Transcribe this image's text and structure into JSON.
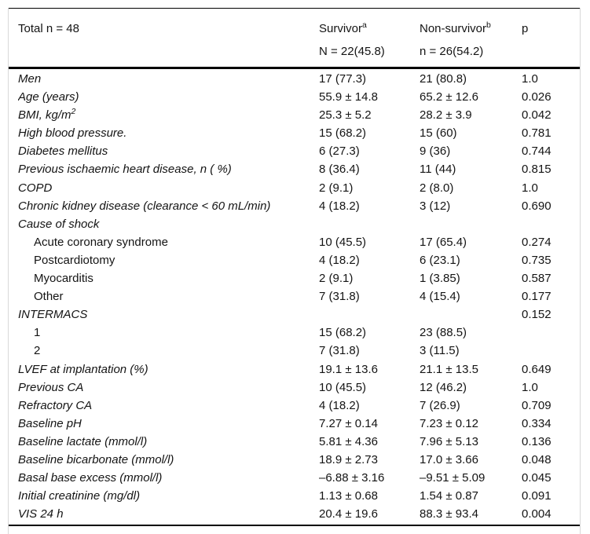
{
  "table": {
    "header": {
      "total": "Total n = 48",
      "survivor": {
        "label": "Survivor",
        "sup": "a",
        "n": "N = 22(45.8)"
      },
      "nonsurvivor": {
        "label": "Non-survivor",
        "sup": "b",
        "n": "n = 26(54.2)"
      },
      "p": "p"
    },
    "rows": [
      {
        "label": "Men",
        "italic": true,
        "indent": false,
        "survivor": "17 (77.3)",
        "nonsurvivor": "21 (80.8)",
        "p": "1.0"
      },
      {
        "label": "Age (years)",
        "italic": true,
        "indent": false,
        "survivor": "55.9 ± 14.8",
        "nonsurvivor": "65.2 ± 12.6",
        "p": "0.026"
      },
      {
        "label": "BMI, kg/m",
        "sup": "2",
        "italic": true,
        "indent": false,
        "survivor": "25.3 ± 5.2",
        "nonsurvivor": "28.2 ± 3.9",
        "p": "0.042"
      },
      {
        "label": "High blood pressure.",
        "italic": true,
        "indent": false,
        "survivor": "15 (68.2)",
        "nonsurvivor": "15 (60)",
        "p": "0.781"
      },
      {
        "label": "Diabetes mellitus",
        "italic": true,
        "indent": false,
        "survivor": "6 (27.3)",
        "nonsurvivor": "9 (36)",
        "p": "0.744"
      },
      {
        "label": "Previous ischaemic heart disease, n ( %)",
        "italic": true,
        "indent": false,
        "survivor": "8 (36.4)",
        "nonsurvivor": "11 (44)",
        "p": "0.815"
      },
      {
        "label": "COPD",
        "italic": true,
        "indent": false,
        "survivor": "2 (9.1)",
        "nonsurvivor": "2 (8.0)",
        "p": "1.0"
      },
      {
        "label": "Chronic kidney disease (clearance < 60 mL/min)",
        "italic": true,
        "indent": false,
        "survivor": "4 (18.2)",
        "nonsurvivor": "3 (12)",
        "p": "0.690"
      },
      {
        "label": "Cause of shock",
        "italic": true,
        "indent": false,
        "survivor": "",
        "nonsurvivor": "",
        "p": ""
      },
      {
        "label": "Acute coronary syndrome",
        "italic": false,
        "indent": true,
        "survivor": "10 (45.5)",
        "nonsurvivor": "17 (65.4)",
        "p": "0.274"
      },
      {
        "label": "Postcardiotomy",
        "italic": false,
        "indent": true,
        "survivor": "4 (18.2)",
        "nonsurvivor": "6 (23.1)",
        "p": "0.735"
      },
      {
        "label": "Myocarditis",
        "italic": false,
        "indent": true,
        "survivor": "2 (9.1)",
        "nonsurvivor": "1 (3.85)",
        "p": "0.587"
      },
      {
        "label": "Other",
        "italic": false,
        "indent": true,
        "survivor": "7 (31.8)",
        "nonsurvivor": "4 (15.4)",
        "p": "0.177"
      },
      {
        "label": "INTERMACS",
        "italic": true,
        "indent": false,
        "survivor": "",
        "nonsurvivor": "",
        "p": "0.152"
      },
      {
        "label": "1",
        "italic": false,
        "indent": true,
        "survivor": "15 (68.2)",
        "nonsurvivor": "23 (88.5)",
        "p": ""
      },
      {
        "label": "2",
        "italic": false,
        "indent": true,
        "survivor": "7 (31.8)",
        "nonsurvivor": "3 (11.5)",
        "p": ""
      },
      {
        "label": "LVEF at implantation (%)",
        "italic": true,
        "indent": false,
        "survivor": "19.1 ± 13.6",
        "nonsurvivor": "21.1 ± 13.5",
        "p": "0.649"
      },
      {
        "label": "Previous CA",
        "italic": true,
        "indent": false,
        "survivor": "10 (45.5)",
        "nonsurvivor": "12 (46.2)",
        "p": "1.0"
      },
      {
        "label": "Refractory CA",
        "italic": true,
        "indent": false,
        "survivor": "4 (18.2)",
        "nonsurvivor": "7 (26.9)",
        "p": "0.709"
      },
      {
        "label": "Baseline pH",
        "italic": true,
        "indent": false,
        "survivor": "7.27 ± 0.14",
        "nonsurvivor": "7.23 ± 0.12",
        "p": "0.334"
      },
      {
        "label": "Baseline lactate (mmol/l)",
        "italic": true,
        "indent": false,
        "survivor": "5.81 ± 4.36",
        "nonsurvivor": "7.96 ± 5.13",
        "p": "0.136"
      },
      {
        "label": "Baseline bicarbonate (mmol/l)",
        "italic": true,
        "indent": false,
        "survivor": "18.9 ± 2.73",
        "nonsurvivor": "17.0 ± 3.66",
        "p": "0.048"
      },
      {
        "label": "Basal base excess (mmol/l)",
        "italic": true,
        "indent": false,
        "survivor": "–6.88 ± 3.16",
        "nonsurvivor": "–9.51 ± 5.09",
        "p": "0.045"
      },
      {
        "label": "Initial creatinine (mg/dl)",
        "italic": true,
        "indent": false,
        "survivor": "1.13 ± 0.68",
        "nonsurvivor": "1.54 ± 0.87",
        "p": "0.091"
      },
      {
        "label": "VIS 24 h",
        "italic": true,
        "indent": false,
        "survivor": "20.4 ± 19.6",
        "nonsurvivor": "88.3 ± 93.4",
        "p": "0.004"
      }
    ]
  }
}
